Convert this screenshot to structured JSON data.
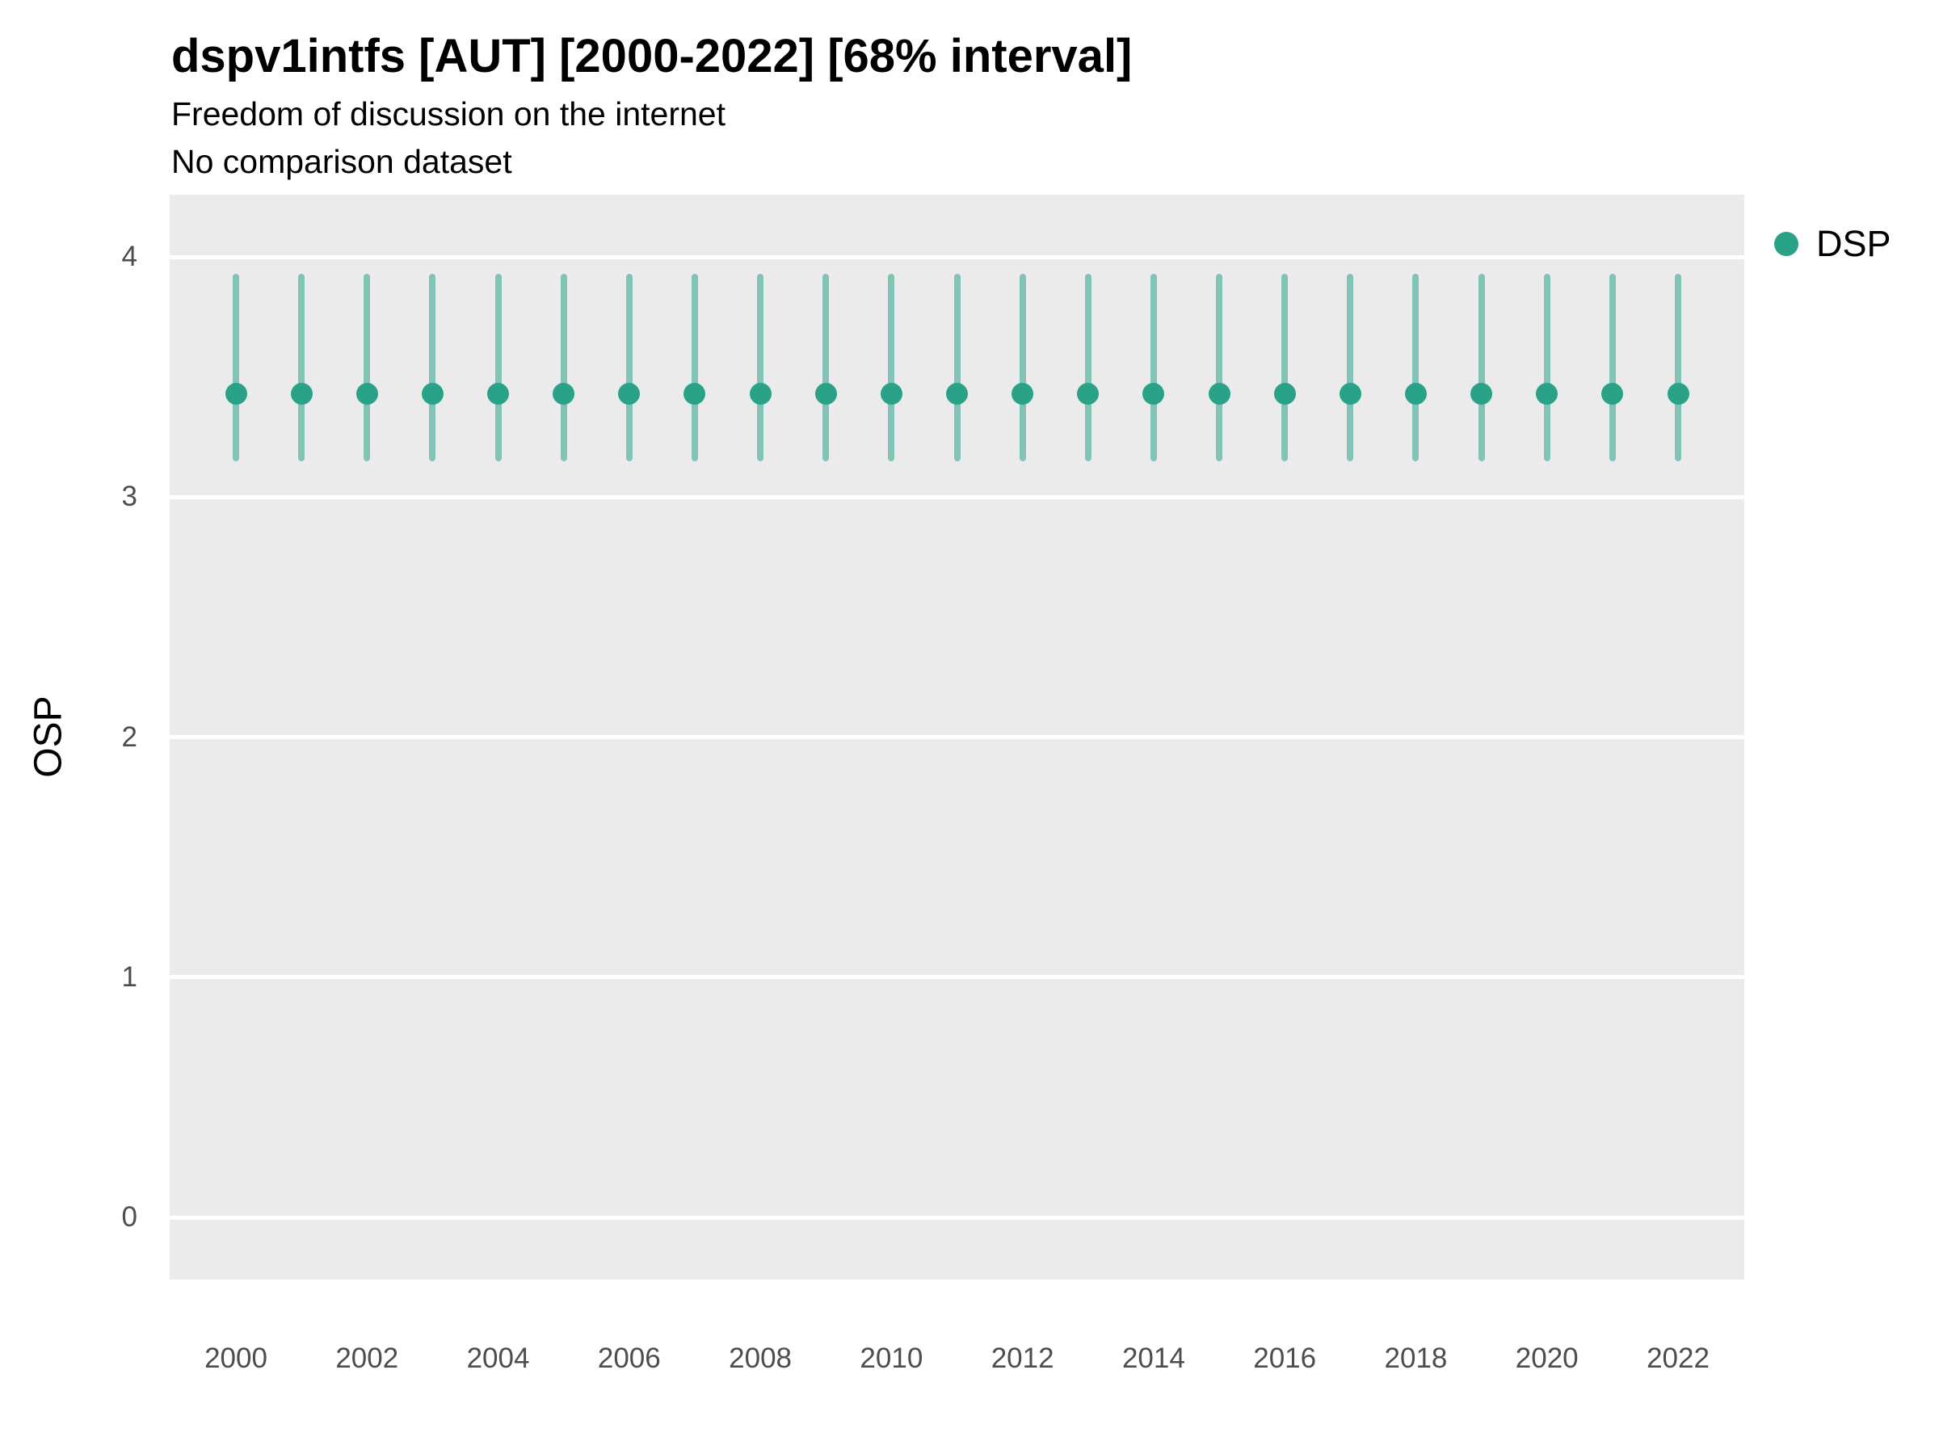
{
  "header": {
    "title": "dspv1intfs [AUT] [2000-2022] [68% interval]",
    "subtitle1": "Freedom of discussion on the internet",
    "subtitle2": "No comparison dataset"
  },
  "legend": {
    "label": "DSP"
  },
  "chart_data": {
    "type": "scatter",
    "title": "dspv1intfs [AUT] [2000-2022] [68% interval]",
    "subtitle": "Freedom of discussion on the internet",
    "note": "No comparison dataset",
    "interval_level": "68%",
    "xlabel": "",
    "ylabel": "OSP",
    "ylim": [
      -0.26,
      4.26
    ],
    "yticks": [
      0,
      1,
      2,
      3,
      4
    ],
    "xticks": [
      2000,
      2002,
      2004,
      2006,
      2008,
      2010,
      2012,
      2014,
      2016,
      2018,
      2020,
      2022
    ],
    "x": [
      2000,
      2001,
      2002,
      2003,
      2004,
      2005,
      2006,
      2007,
      2008,
      2009,
      2010,
      2011,
      2012,
      2013,
      2014,
      2015,
      2016,
      2017,
      2018,
      2019,
      2020,
      2021,
      2022
    ],
    "series": [
      {
        "name": "DSP",
        "values": [
          3.43,
          3.43,
          3.43,
          3.43,
          3.43,
          3.43,
          3.43,
          3.43,
          3.43,
          3.43,
          3.43,
          3.43,
          3.43,
          3.43,
          3.43,
          3.43,
          3.43,
          3.43,
          3.43,
          3.43,
          3.43,
          3.43,
          3.43
        ],
        "interval_low": [
          3.15,
          3.15,
          3.15,
          3.15,
          3.15,
          3.15,
          3.15,
          3.15,
          3.15,
          3.15,
          3.15,
          3.15,
          3.15,
          3.15,
          3.15,
          3.15,
          3.15,
          3.15,
          3.15,
          3.15,
          3.15,
          3.15,
          3.15
        ],
        "interval_high": [
          3.93,
          3.93,
          3.93,
          3.93,
          3.93,
          3.93,
          3.93,
          3.93,
          3.93,
          3.93,
          3.93,
          3.93,
          3.93,
          3.93,
          3.93,
          3.93,
          3.93,
          3.93,
          3.93,
          3.93,
          3.93,
          3.93,
          3.93
        ]
      }
    ],
    "legend_position": "right",
    "grid": "horizontal-major",
    "colors": {
      "point": "#2aa287",
      "errorbar": "rgba(42,162,135,0.55)",
      "panel_bg": "#ebebeb",
      "gridline": "#ffffff",
      "tick_text": "#4d4d4d"
    }
  }
}
